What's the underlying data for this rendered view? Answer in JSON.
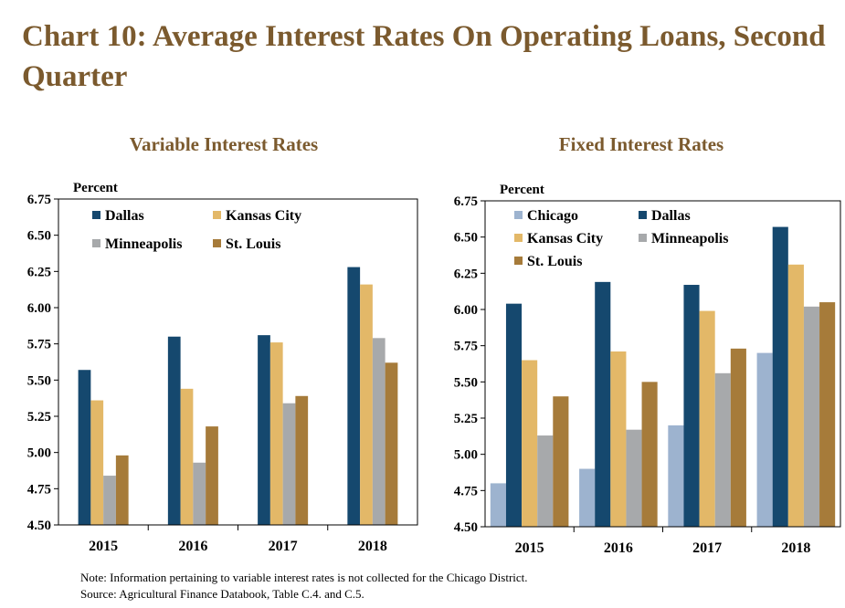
{
  "title": "Chart 10: Average Interest Rates On Operating Loans, Second Quarter",
  "notes": {
    "note": "Note: Information pertaining to variable interest rates is not collected for the Chicago District.",
    "source": "Source: Agricultural Finance Databook, Table C.4. and C.5."
  },
  "colors": {
    "Chicago": "#9db3cf",
    "Dallas": "#15486e",
    "Kansas City": "#e3b868",
    "Minneapolis": "#a7a9ab",
    "St. Louis": "#a67b3a",
    "title": "#7b5a2e"
  },
  "chart_data": [
    {
      "type": "bar",
      "title": "Variable Interest Rates",
      "ylabel": "Percent",
      "ylim": [
        4.5,
        6.75
      ],
      "yticks": [
        "4.50",
        "4.75",
        "5.00",
        "5.25",
        "5.50",
        "5.75",
        "6.00",
        "6.25",
        "6.50",
        "6.75"
      ],
      "categories": [
        "2015",
        "2016",
        "2017",
        "2018"
      ],
      "legend_columns": 2,
      "series": [
        {
          "name": "Dallas",
          "values": [
            5.57,
            5.8,
            5.81,
            6.28
          ]
        },
        {
          "name": "Kansas City",
          "values": [
            5.36,
            5.44,
            5.76,
            6.16
          ]
        },
        {
          "name": "Minneapolis",
          "values": [
            4.84,
            4.93,
            5.34,
            5.79
          ]
        },
        {
          "name": "St. Louis",
          "values": [
            4.98,
            5.18,
            5.39,
            5.62
          ]
        }
      ]
    },
    {
      "type": "bar",
      "title": "Fixed Interest Rates",
      "ylabel": "Percent",
      "ylim": [
        4.5,
        6.75
      ],
      "yticks": [
        "4.50",
        "4.75",
        "5.00",
        "5.25",
        "5.50",
        "5.75",
        "6.00",
        "6.25",
        "6.50",
        "6.75"
      ],
      "categories": [
        "2015",
        "2016",
        "2017",
        "2018"
      ],
      "legend_columns": 2,
      "series": [
        {
          "name": "Chicago",
          "values": [
            4.8,
            4.9,
            5.2,
            5.7
          ]
        },
        {
          "name": "Dallas",
          "values": [
            6.04,
            6.19,
            6.17,
            6.57
          ]
        },
        {
          "name": "Kansas City",
          "values": [
            5.65,
            5.71,
            5.99,
            6.31
          ]
        },
        {
          "name": "Minneapolis",
          "values": [
            5.13,
            5.17,
            5.56,
            6.02
          ]
        },
        {
          "name": "St. Louis",
          "values": [
            5.4,
            5.5,
            5.73,
            6.05
          ]
        }
      ]
    }
  ]
}
